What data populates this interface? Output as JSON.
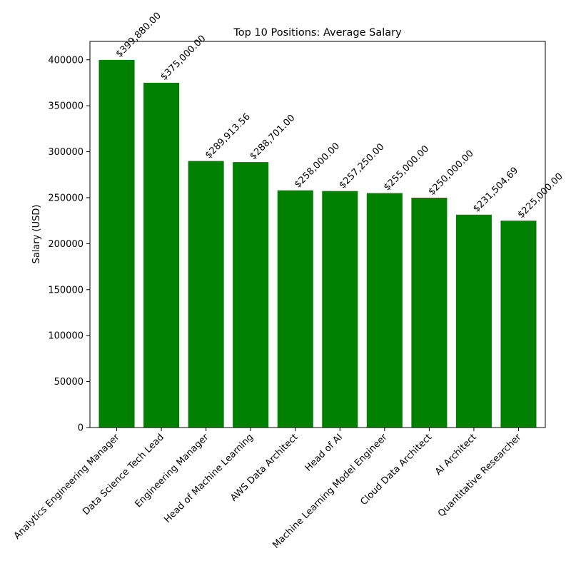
{
  "chart_data": {
    "type": "bar",
    "title": "Top 10 Positions: Average Salary",
    "xlabel": "",
    "ylabel": "Salary (USD)",
    "categories": [
      "Analytics Engineering Manager",
      "Data Science Tech Lead",
      "Engineering Manager",
      "Head of Machine Learning",
      "AWS Data Architect",
      "Head of AI",
      "Machine Learning Model Engineer",
      "Cloud Data Architect",
      "AI Architect",
      "Quantitative Researcher"
    ],
    "values": [
      399880.0,
      375000.0,
      289913.56,
      288701.0,
      258000.0,
      257250.0,
      255000.0,
      250000.0,
      231504.69,
      225000.0
    ],
    "value_labels": [
      "$399,880.00",
      "$375,000.00",
      "$289,913.56",
      "$288,701.00",
      "$258,000.00",
      "$257,250.00",
      "$255,000.00",
      "$250,000.00",
      "$231,504.69",
      "$225,000.00"
    ],
    "ylim": [
      0,
      420000
    ],
    "yticks": [
      0,
      50000,
      100000,
      150000,
      200000,
      250000,
      300000,
      350000,
      400000
    ],
    "ytick_labels": [
      "0",
      "50000",
      "100000",
      "150000",
      "200000",
      "250000",
      "300000",
      "350000",
      "400000"
    ],
    "bar_color": "#008000",
    "grid": false,
    "legend": "none"
  }
}
